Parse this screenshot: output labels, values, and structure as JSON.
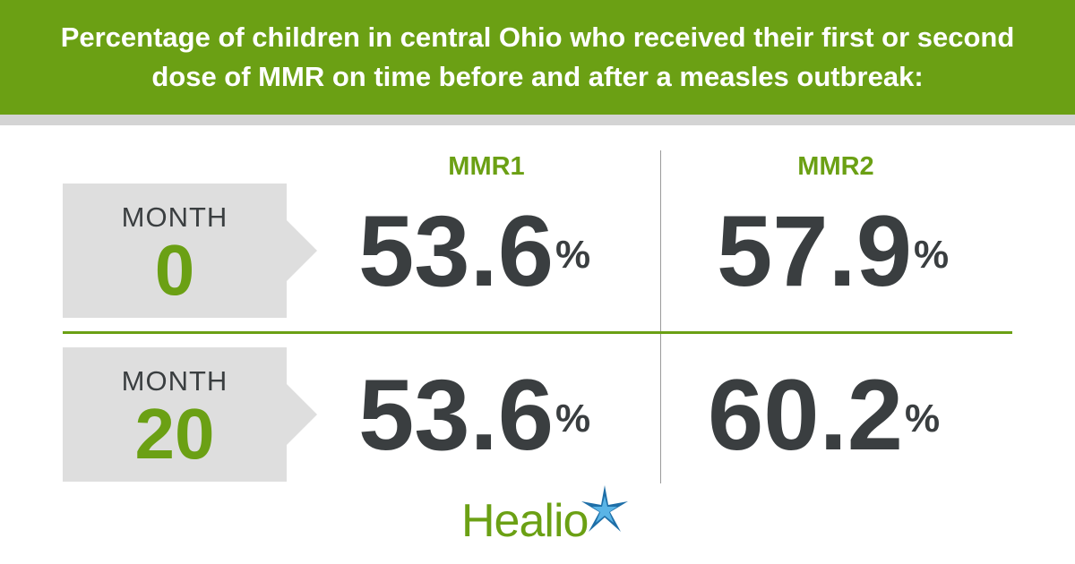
{
  "title": "Percentage of children in central Ohio who received their first or second dose of MMR on time before and after a measles outbreak:",
  "colors": {
    "accent_green": "#6ba014",
    "value_dark": "#3a3e40",
    "label_bg": "#dedede",
    "logo_blue": "#1e6fa8"
  },
  "chart_data": {
    "type": "table",
    "columns": [
      "MMR1",
      "MMR2"
    ],
    "unit": "%",
    "rows": [
      {
        "label_word": "MONTH",
        "label_num": "0",
        "values": [
          "53.6",
          "57.9"
        ]
      },
      {
        "label_word": "MONTH",
        "label_num": "20",
        "values": [
          "53.6",
          "60.2"
        ]
      }
    ]
  },
  "logo": {
    "text": "Healio",
    "icon": "star-burst-icon"
  }
}
